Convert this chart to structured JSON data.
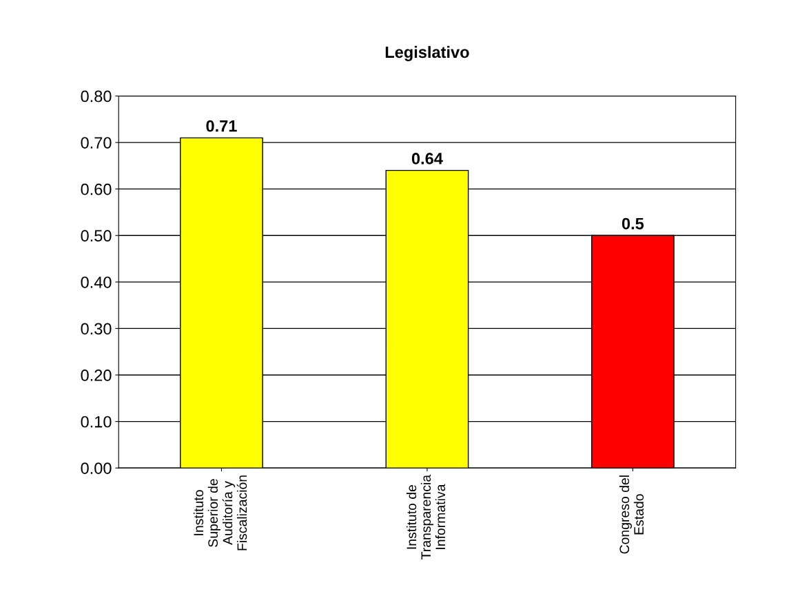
{
  "chart_data": {
    "type": "bar",
    "title": "Legislativo",
    "categories": [
      "Instituto\nSuperior de\nAuditoría y\nFiscalización",
      "Instituto de\nTransparencia\nInformativa",
      "Congreso del\nEstado"
    ],
    "values": [
      0.71,
      0.64,
      0.5
    ],
    "colors": [
      "#ffff00",
      "#ffff00",
      "#ff0000"
    ],
    "ylim": [
      0,
      0.8
    ],
    "yticks": [
      {
        "value": 0,
        "label": "0.00"
      },
      {
        "value": 0.1,
        "label": "0.10"
      },
      {
        "value": 0.2,
        "label": "0.20"
      },
      {
        "value": 0.3,
        "label": "0.30"
      },
      {
        "value": 0.4,
        "label": "0.40"
      },
      {
        "value": 0.5,
        "label": "0.50"
      },
      {
        "value": 0.6,
        "label": "0.60"
      },
      {
        "value": 0.7,
        "label": "0.70"
      },
      {
        "value": 0.8,
        "label": "0.80"
      }
    ],
    "grid": "y",
    "data_labels": true,
    "legend": false
  }
}
